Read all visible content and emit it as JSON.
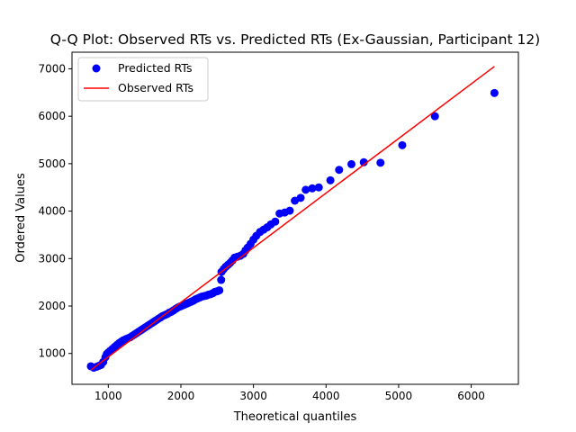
{
  "chart_data": {
    "type": "scatter",
    "title": "Q-Q Plot: Observed RTs vs. Predicted RTs (Ex-Gaussian, Participant 12)",
    "xlabel": "Theoretical quantiles",
    "ylabel": "Ordered Values",
    "xlim": [
      500,
      6650
    ],
    "ylim": [
      350,
      7350
    ],
    "xticks": [
      1000,
      2000,
      3000,
      4000,
      5000,
      6000
    ],
    "yticks": [
      1000,
      2000,
      3000,
      4000,
      5000,
      6000,
      7000
    ],
    "legend_position": "upper-left",
    "series": [
      {
        "name": "Predicted RTs",
        "kind": "points",
        "color": "#0000ff",
        "x": [
          760,
          800,
          840,
          870,
          900,
          930,
          960,
          980,
          1000,
          1030,
          1060,
          1090,
          1120,
          1150,
          1180,
          1210,
          1240,
          1270,
          1300,
          1330,
          1360,
          1390,
          1420,
          1450,
          1480,
          1510,
          1540,
          1570,
          1600,
          1630,
          1660,
          1690,
          1720,
          1750,
          1780,
          1810,
          1840,
          1870,
          1900,
          1930,
          1960,
          1990,
          2020,
          2050,
          2080,
          2110,
          2140,
          2170,
          2200,
          2230,
          2260,
          2290,
          2320,
          2350,
          2380,
          2410,
          2440,
          2470,
          2500,
          2530,
          2555,
          2560,
          2590,
          2620,
          2650,
          2680,
          2710,
          2740,
          2780,
          2820,
          2860,
          2890,
          2920,
          2960,
          3000,
          3040,
          3090,
          3140,
          3190,
          3240,
          3300,
          3360,
          3430,
          3500,
          3570,
          3650,
          3720,
          3810,
          3900,
          4060,
          4180,
          4350,
          4520,
          4750,
          5050,
          5500,
          6320
        ],
        "y": [
          730,
          700,
          720,
          740,
          760,
          820,
          920,
          990,
          1020,
          1060,
          1100,
          1140,
          1180,
          1220,
          1250,
          1280,
          1300,
          1320,
          1340,
          1370,
          1400,
          1430,
          1460,
          1490,
          1520,
          1550,
          1580,
          1610,
          1640,
          1670,
          1700,
          1730,
          1760,
          1790,
          1810,
          1830,
          1860,
          1880,
          1910,
          1940,
          1970,
          1990,
          2010,
          2030,
          2050,
          2070,
          2090,
          2110,
          2140,
          2160,
          2180,
          2200,
          2210,
          2220,
          2240,
          2250,
          2270,
          2300,
          2310,
          2330,
          2550,
          2720,
          2780,
          2830,
          2870,
          2910,
          2960,
          3020,
          3040,
          3060,
          3100,
          3170,
          3230,
          3310,
          3400,
          3480,
          3560,
          3610,
          3660,
          3720,
          3780,
          3950,
          3970,
          4010,
          4220,
          4280,
          4450,
          4480,
          4500,
          4650,
          4870,
          4990,
          5030,
          5020,
          5390,
          6000,
          6490
        ]
      },
      {
        "name": "Observed RTs",
        "kind": "line",
        "color": "#ff0000",
        "x": [
          760,
          6320
        ],
        "y": [
          650,
          7050
        ]
      }
    ]
  }
}
